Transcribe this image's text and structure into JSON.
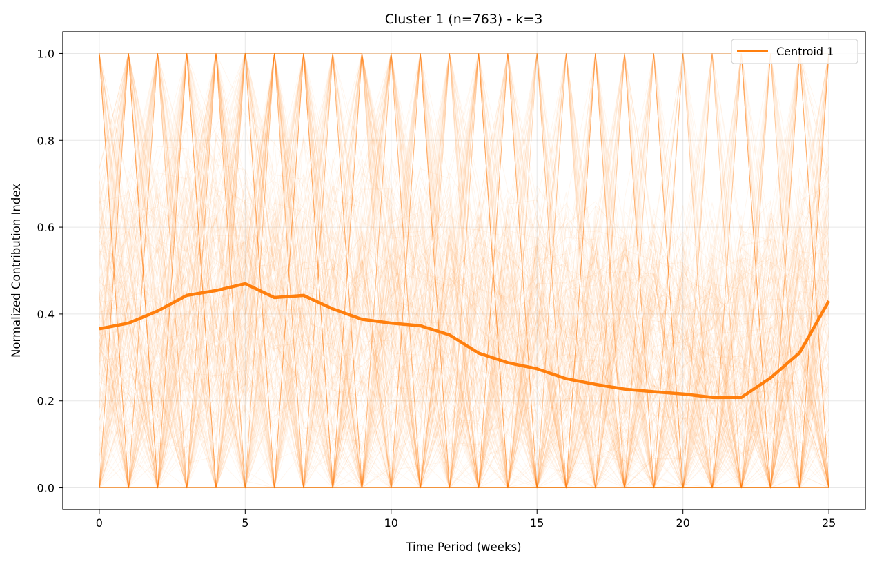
{
  "chart_data": {
    "type": "line",
    "title": "Cluster 1 (n=763) - k=3",
    "xlabel": "Time Period (weeks)",
    "ylabel": "Normalized Contribution Index",
    "xlim": [
      -1.25,
      26.25
    ],
    "ylim": [
      -0.05,
      1.05
    ],
    "xticks": [
      0,
      5,
      10,
      15,
      20,
      25
    ],
    "xtick_labels": [
      "0",
      "5",
      "10",
      "15",
      "20",
      "25"
    ],
    "yticks": [
      0.0,
      0.2,
      0.4,
      0.6,
      0.8,
      1.0
    ],
    "ytick_labels": [
      "0.0",
      "0.2",
      "0.4",
      "0.6",
      "0.8",
      "1.0"
    ],
    "grid": true,
    "legend_position": "top-right",
    "background_series": {
      "count": 763,
      "color": "#ff7f0e",
      "description_style": "faint individual member trajectories, each normalized to [0,1]"
    },
    "series": [
      {
        "name": "Centroid 1",
        "color": "#ff7f0e",
        "x": [
          0,
          1,
          2,
          3,
          4,
          5,
          6,
          7,
          8,
          9,
          10,
          11,
          12,
          13,
          14,
          15,
          16,
          17,
          18,
          19,
          20,
          21,
          22,
          23,
          24,
          25
        ],
        "values": [
          0.366,
          0.379,
          0.407,
          0.443,
          0.454,
          0.47,
          0.438,
          0.443,
          0.412,
          0.388,
          0.379,
          0.373,
          0.352,
          0.31,
          0.288,
          0.274,
          0.251,
          0.238,
          0.227,
          0.221,
          0.216,
          0.208,
          0.208,
          0.253,
          0.311,
          0.43
        ]
      }
    ]
  }
}
